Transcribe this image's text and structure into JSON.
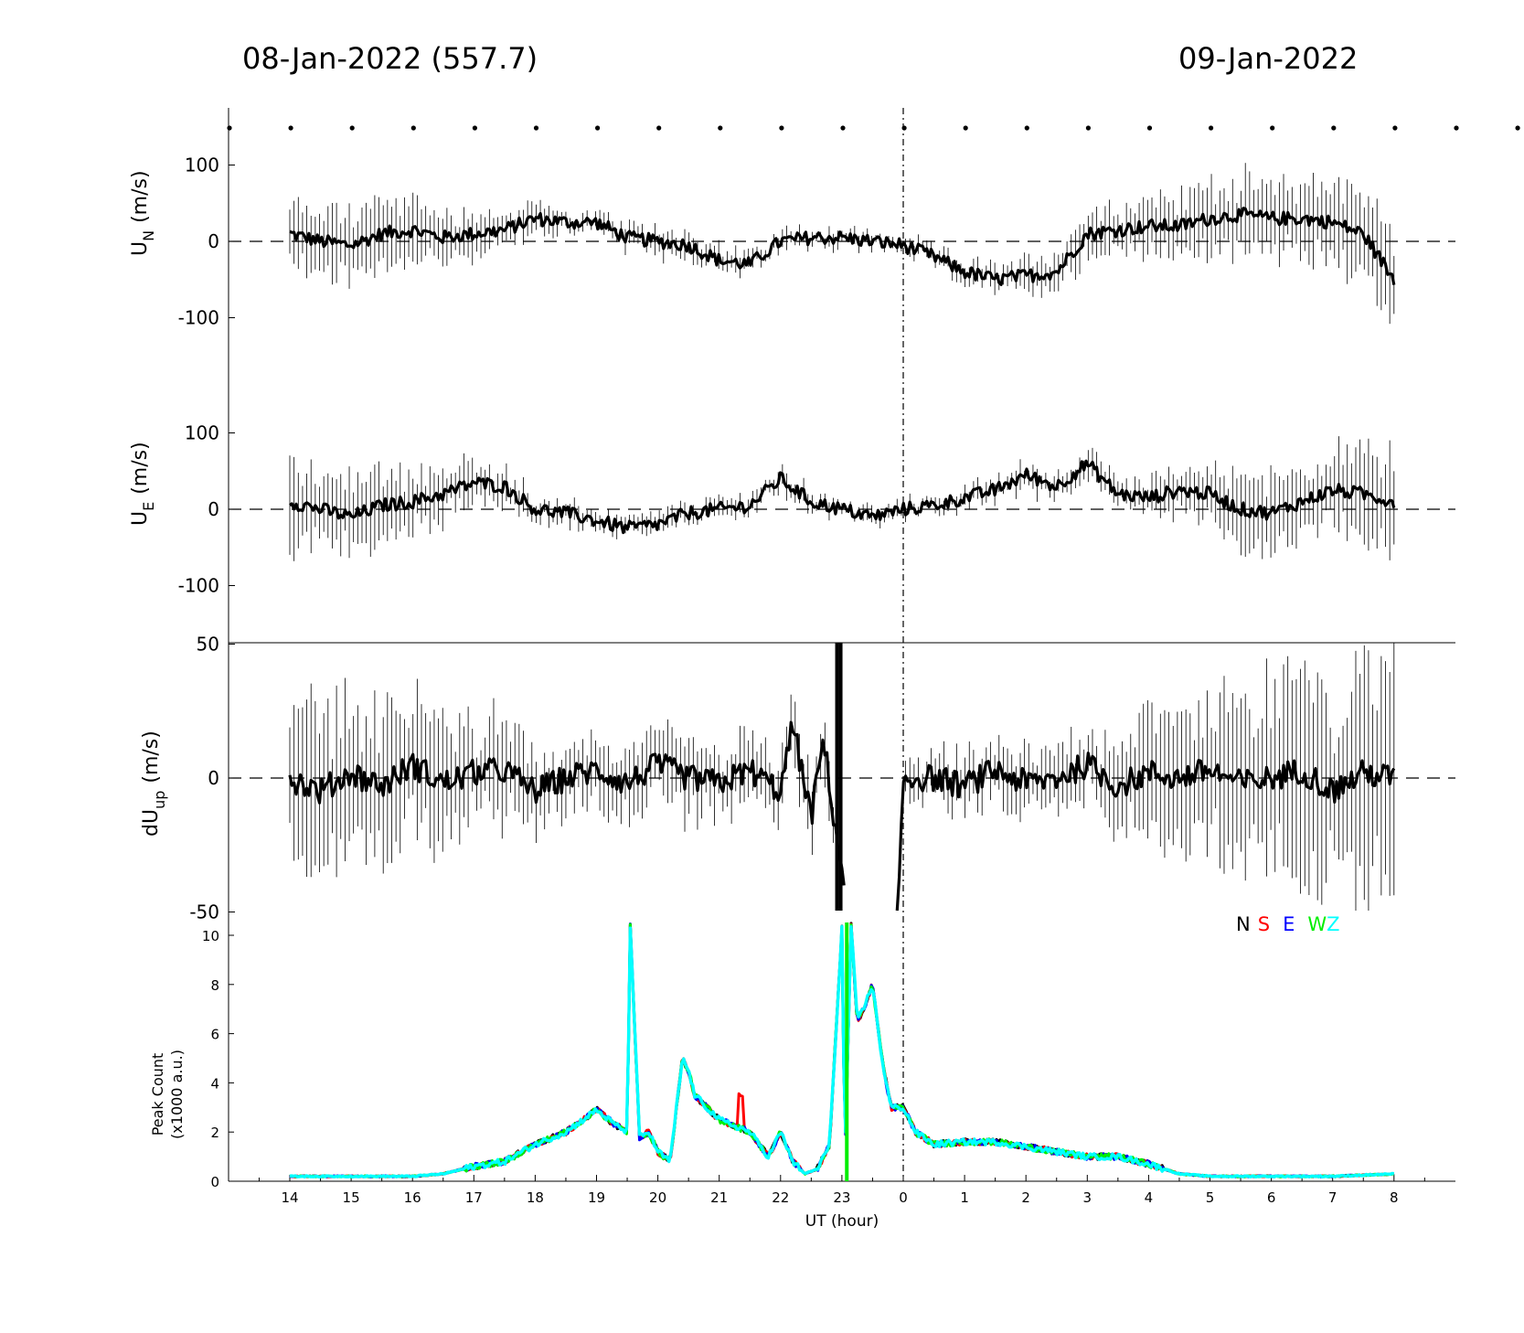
{
  "header": {
    "left_title": "08-Jan-2022 (557.7)",
    "right_title": "09-Jan-2022"
  },
  "chart_data": [
    {
      "type": "line",
      "panel": "UN",
      "ylabel": "U",
      "ylabel_sub": "N",
      "ylabel_unit": "(m/s)",
      "yticks": [
        "100",
        "0",
        "-100"
      ],
      "ytick_values": [
        100,
        0,
        -100
      ],
      "ylim": [
        -175,
        175
      ],
      "xlim_hours_since_14UT": [
        -1,
        19
      ],
      "reference_line": 0,
      "series": [
        {
          "color": "#000000",
          "x_hours_since_14UT": [
            0,
            0.5,
            1,
            1.5,
            2,
            2.5,
            3,
            3.5,
            4,
            4.5,
            5,
            5.5,
            6,
            6.5,
            7,
            7.5,
            8,
            8.5,
            9,
            9.5,
            10,
            10.5,
            11,
            11.5,
            12,
            12.5,
            13,
            13.5,
            14,
            14.5,
            15,
            15.5,
            16,
            16.5,
            17,
            17.5,
            18
          ],
          "y": [
            10,
            0,
            -5,
            10,
            15,
            5,
            10,
            15,
            30,
            25,
            25,
            5,
            0,
            -5,
            -25,
            -30,
            0,
            5,
            5,
            0,
            -5,
            -20,
            -40,
            -50,
            -45,
            -40,
            10,
            15,
            20,
            20,
            30,
            35,
            30,
            30,
            25,
            10,
            -50
          ],
          "error": [
            35,
            40,
            40,
            38,
            35,
            30,
            25,
            20,
            15,
            12,
            10,
            12,
            15,
            15,
            15,
            12,
            12,
            10,
            10,
            8,
            8,
            10,
            12,
            15,
            20,
            22,
            25,
            28,
            32,
            35,
            40,
            42,
            45,
            45,
            48,
            50,
            60
          ]
        }
      ]
    },
    {
      "type": "line",
      "panel": "UE",
      "ylabel": "U",
      "ylabel_sub": "E",
      "ylabel_unit": "(m/s)",
      "yticks": [
        "100",
        "0",
        "-100"
      ],
      "ytick_values": [
        100,
        0,
        -100
      ],
      "ylim": [
        -175,
        175
      ],
      "reference_line": 0,
      "series": [
        {
          "color": "#000000",
          "x_hours_since_14UT": [
            0,
            0.5,
            1,
            1.5,
            2,
            2.5,
            3,
            3.5,
            4,
            4.5,
            5,
            5.5,
            6,
            6.5,
            7,
            7.5,
            8,
            8.5,
            9,
            9.5,
            10,
            10.5,
            11,
            11.5,
            12,
            12.5,
            13,
            13.5,
            14,
            14.5,
            15,
            15.5,
            16,
            16.5,
            17,
            17.5,
            18
          ],
          "y": [
            10,
            0,
            -10,
            5,
            10,
            20,
            35,
            30,
            0,
            -5,
            -15,
            -25,
            -20,
            -5,
            0,
            5,
            40,
            10,
            0,
            -10,
            0,
            5,
            15,
            25,
            45,
            30,
            60,
            20,
            15,
            25,
            20,
            0,
            -5,
            10,
            25,
            20,
            10
          ],
          "error": [
            50,
            45,
            45,
            40,
            35,
            30,
            25,
            20,
            15,
            12,
            12,
            12,
            12,
            10,
            10,
            10,
            15,
            10,
            8,
            8,
            8,
            8,
            10,
            12,
            15,
            15,
            15,
            15,
            18,
            25,
            35,
            40,
            45,
            45,
            48,
            50,
            55
          ]
        }
      ]
    },
    {
      "type": "line",
      "panel": "dUup",
      "ylabel": "dU",
      "ylabel_sub": "up",
      "ylabel_unit": "(m/s)",
      "yticks": [
        "50",
        "0",
        "-50"
      ],
      "ytick_values": [
        50,
        0,
        -50
      ],
      "ylim": [
        -50,
        50
      ],
      "reference_line": 0,
      "series": [
        {
          "color": "#000000",
          "x_hours_since_14UT": [
            0,
            0.5,
            1,
            1.5,
            2,
            2.5,
            3,
            3.5,
            4,
            4.5,
            5,
            5.5,
            6,
            6.5,
            7,
            7.5,
            8,
            8.2,
            8.5,
            8.7,
            8.9,
            9.2,
            9.5,
            9.7,
            9.9,
            10,
            10.5,
            11,
            11.5,
            12,
            12.5,
            13,
            13.5,
            14,
            14.5,
            15,
            15.5,
            16,
            16.5,
            17,
            17.5,
            18
          ],
          "y": [
            0,
            -5,
            2,
            -3,
            5,
            -2,
            2,
            3,
            -5,
            0,
            3,
            -2,
            5,
            0,
            -2,
            3,
            -5,
            20,
            -15,
            15,
            -20,
            -60,
            -60,
            -45,
            -60,
            0,
            0,
            -3,
            3,
            -2,
            0,
            5,
            -3,
            2,
            0,
            3,
            -2,
            0,
            3,
            -5,
            2,
            0
          ],
          "error": [
            25,
            25,
            25,
            22,
            22,
            20,
            18,
            15,
            12,
            10,
            10,
            10,
            12,
            12,
            12,
            10,
            10,
            10,
            10,
            10,
            10,
            0,
            0,
            0,
            0,
            8,
            8,
            8,
            8,
            10,
            10,
            12,
            15,
            18,
            20,
            25,
            28,
            30,
            30,
            32,
            35,
            35
          ]
        }
      ]
    },
    {
      "type": "line",
      "panel": "PeakCount",
      "ylabel": "Peak Count",
      "ylabel_line2": "(x1000 a.u.)",
      "yticks": [
        "10",
        "8",
        "6",
        "4",
        "2",
        "0"
      ],
      "ytick_values": [
        10,
        8,
        6,
        4,
        2,
        0
      ],
      "ylim": [
        0,
        10.4
      ],
      "xlabel": "UT (hour)",
      "xticks": [
        "14",
        "15",
        "16",
        "17",
        "18",
        "19",
        "20",
        "21",
        "22",
        "23",
        "0",
        "1",
        "2",
        "3",
        "4",
        "5",
        "6",
        "7",
        "8"
      ],
      "xtick_positions_hours_since_14UT": [
        0,
        1,
        2,
        3,
        4,
        5,
        6,
        7,
        8,
        9,
        10,
        11,
        12,
        13,
        14,
        15,
        16,
        17,
        18
      ],
      "legend": [
        {
          "label": "N",
          "color": "#000000"
        },
        {
          "label": "S",
          "color": "#ff0000"
        },
        {
          "label": "E",
          "color": "#0000ff"
        },
        {
          "label": "W",
          "color": "#00ee00"
        },
        {
          "label": "Z",
          "color": "#00ffff"
        }
      ],
      "series": [
        {
          "name": "N",
          "color": "#000000"
        },
        {
          "name": "S",
          "color": "#ff0000"
        },
        {
          "name": "E",
          "color": "#0000ff"
        },
        {
          "name": "W",
          "color": "#00ee00"
        },
        {
          "name": "Z",
          "color": "#00ffff"
        }
      ],
      "x_hours_since_14UT": [
        0,
        1,
        2,
        2.5,
        3,
        3.5,
        4,
        4.5,
        5,
        5.3,
        5.5,
        5.55,
        5.7,
        5.85,
        6.0,
        6.2,
        6.4,
        6.5,
        6.6,
        7.0,
        7.5,
        7.8,
        8.0,
        8.2,
        8.4,
        8.6,
        8.8,
        9.0,
        9.05,
        9.15,
        9.25,
        9.35,
        9.5,
        9.65,
        9.8,
        9.9,
        10.0,
        10.2,
        10.5,
        11,
        11.5,
        12,
        12.5,
        13,
        13.5,
        14,
        14.5,
        15,
        16,
        17,
        18
      ],
      "y": [
        0.2,
        0.2,
        0.2,
        0.3,
        0.6,
        0.8,
        1.5,
        2.0,
        2.9,
        2.3,
        2.0,
        10.4,
        1.8,
        2.0,
        1.2,
        0.8,
        5.0,
        4.5,
        3.5,
        2.5,
        2.0,
        1.0,
        2.0,
        0.8,
        0.3,
        0.5,
        1.5,
        10.3,
        1.0,
        10.4,
        6.5,
        7.0,
        8.0,
        5.0,
        3.0,
        3.0,
        3.0,
        2.0,
        1.5,
        1.6,
        1.6,
        1.4,
        1.2,
        1.0,
        1.0,
        0.7,
        0.3,
        0.2,
        0.2,
        0.2,
        0.3
      ]
    }
  ]
}
